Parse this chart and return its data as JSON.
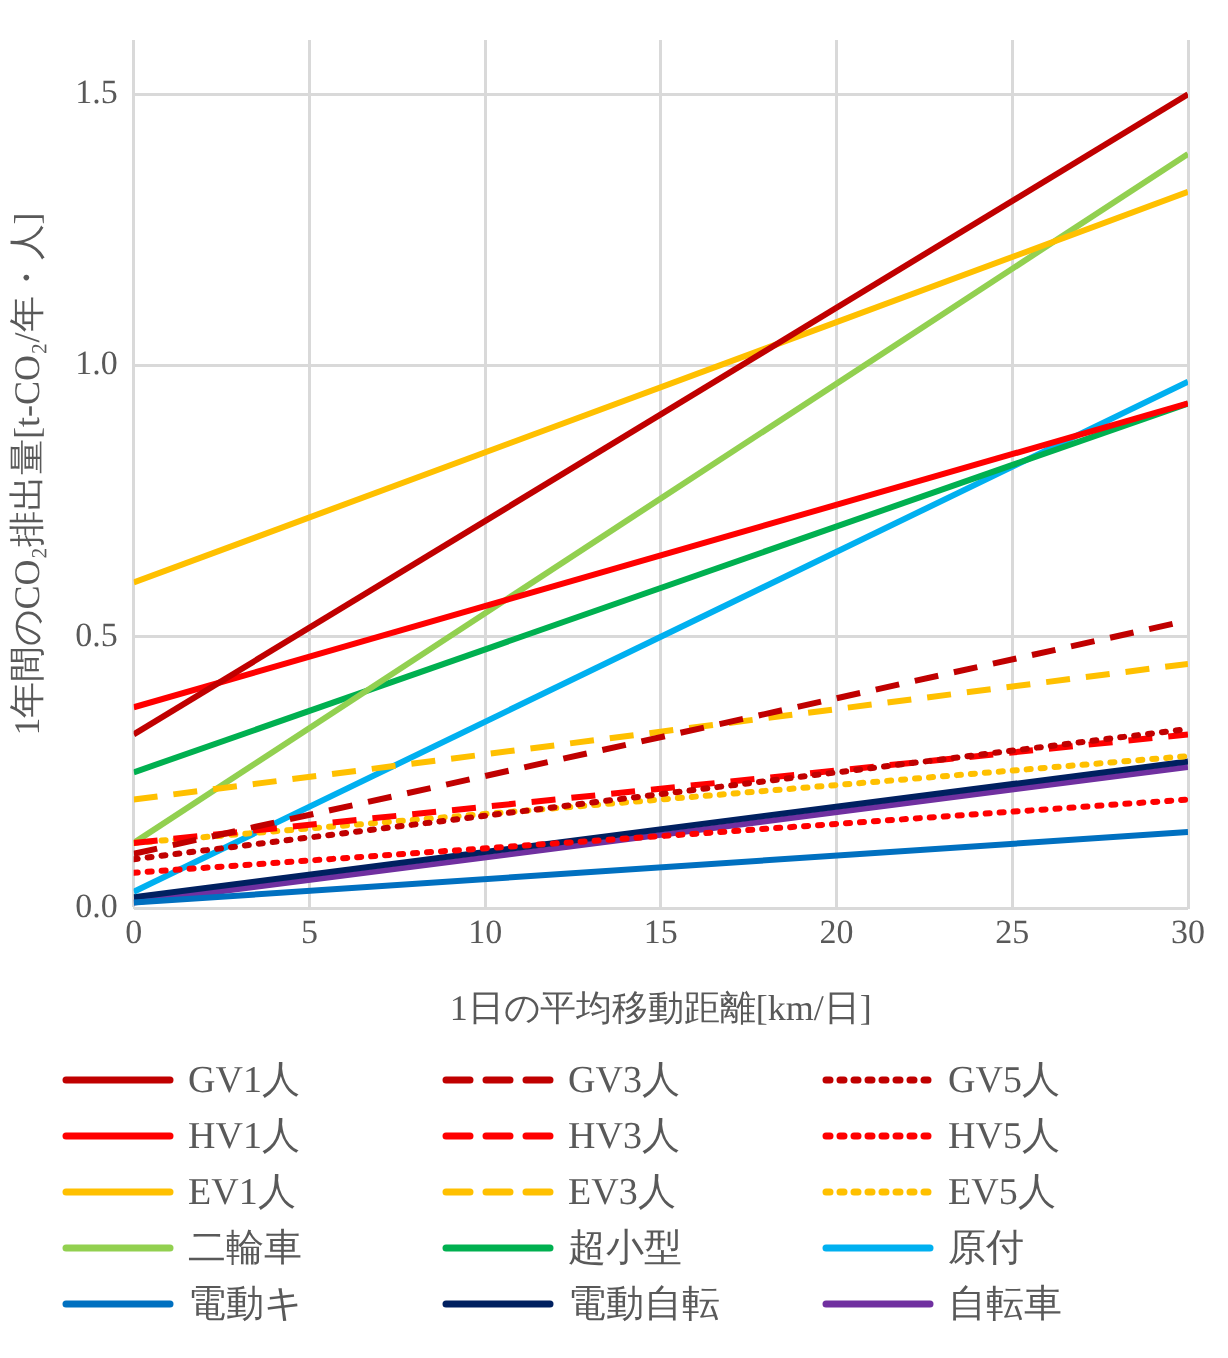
{
  "chart_data": {
    "type": "line",
    "xlabel": "1日の平均移動距離[km/日]",
    "ylabel": "1年間のCO₂排出量[t-CO₂/年・人]",
    "x": [
      0,
      30
    ],
    "xlim": [
      0,
      30
    ],
    "xticks": [
      0,
      5,
      10,
      15,
      20,
      25,
      30
    ],
    "ylim": [
      0,
      1.6
    ],
    "yticks": [
      {
        "value": 0,
        "label": "0.0"
      },
      {
        "value": 0.5,
        "label": "0.5"
      },
      {
        "value": 1,
        "label": "1.0"
      },
      {
        "value": 1.5,
        "label": "1.5"
      }
    ],
    "grid": true,
    "legend": "bottom",
    "marker": "none",
    "series": [
      {
        "name": "GV1人",
        "color": "#c00000",
        "line_style": "solid",
        "values": [
          0.32,
          1.5
        ]
      },
      {
        "name": "GV3人",
        "color": "#c00000",
        "line_style": "dashed",
        "values": [
          0.1,
          0.53
        ]
      },
      {
        "name": "GV5人",
        "color": "#c00000",
        "line_style": "dotted",
        "values": [
          0.09,
          0.33
        ]
      },
      {
        "name": "HV1人",
        "color": "#ff0000",
        "line_style": "solid",
        "values": [
          0.37,
          0.93
        ]
      },
      {
        "name": "HV3人",
        "color": "#ff0000",
        "line_style": "dashed",
        "values": [
          0.12,
          0.32
        ]
      },
      {
        "name": "HV5人",
        "color": "#ff0000",
        "line_style": "dotted",
        "values": [
          0.065,
          0.2
        ]
      },
      {
        "name": "EV1人",
        "color": "#ffc000",
        "line_style": "solid",
        "values": [
          0.6,
          1.32
        ]
      },
      {
        "name": "EV3人",
        "color": "#ffc000",
        "line_style": "dashed",
        "values": [
          0.2,
          0.45
        ]
      },
      {
        "name": "EV5人",
        "color": "#ffc000",
        "line_style": "dotted",
        "values": [
          0.12,
          0.28
        ]
      },
      {
        "name": "二輪車",
        "color": "#92d050",
        "line_style": "solid",
        "values": [
          0.12,
          1.39
        ]
      },
      {
        "name": "超小型",
        "color": "#00b050",
        "line_style": "solid",
        "values": [
          0.25,
          0.93
        ]
      },
      {
        "name": "原付",
        "color": "#00b0f0",
        "line_style": "solid",
        "values": [
          0.03,
          0.97
        ]
      },
      {
        "name": "電動キ",
        "color": "#0070c0",
        "line_style": "solid",
        "values": [
          0.01,
          0.14
        ]
      },
      {
        "name": "電動自転",
        "color": "#002060",
        "line_style": "solid",
        "values": [
          0.02,
          0.27
        ]
      },
      {
        "name": "自転車",
        "color": "#7030a0",
        "line_style": "solid",
        "values": [
          0.01,
          0.26
        ]
      }
    ]
  }
}
